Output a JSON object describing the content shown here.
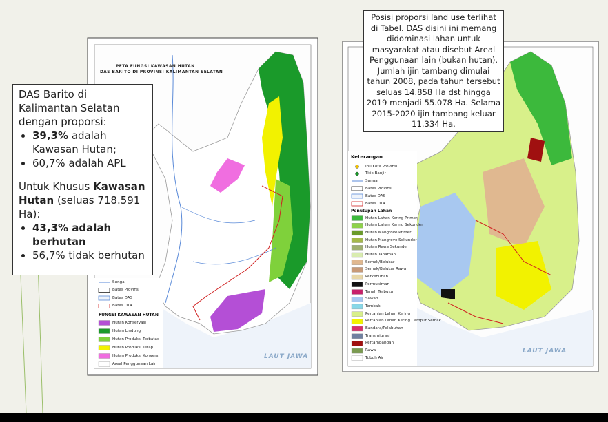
{
  "left_callout": {
    "intro": "DAS Barito di Kalimantan Selatan dengan proporsi:",
    "bullets": [
      {
        "bold": "39,3%",
        "text": "adalah Kawasan Hutan;"
      },
      {
        "text": "60,7% adalah APL"
      }
    ],
    "second_pre": "Untuk Khusus",
    "second_bold": "Kawasan Hutan",
    "second_post": "(seluas 718.591 Ha):",
    "bullets2": [
      {
        "bold": "43,3% adalah berhutan"
      },
      {
        "text": "56,7% tidak berhutan"
      }
    ]
  },
  "right_callout": {
    "paragraphs": [
      "Posisi proporsi land use terlihat di Tabel. DAS disini  ini memang didominasi lahan untuk masyarakat atau disebut Areal Penggunaan lain (bukan hutan).",
      "Jumlah ijin tambang dimulai tahun 2008, pada tahun tersebut seluas 14.858  Ha dst hingga 2019 menjadi 55.078 Ha. Selama 2015-2020 ijin tambang keluar 11.334 Ha."
    ]
  },
  "left_map": {
    "title": [
      "PETA FUNGSI KAWASAN HUTAN",
      "DAS BARITO DI PROVINSI KALIMANTAN SELATAN"
    ],
    "boundaries": [
      {
        "label": "Sungai",
        "style": "river"
      },
      {
        "label": "Batas Provinsi",
        "style": "prov"
      },
      {
        "label": "Batas DAS",
        "style": "das"
      },
      {
        "label": "Batas DTA",
        "style": "dta"
      }
    ],
    "legend_title": "FUNGSI KAWASAN HUTAN",
    "legend": [
      {
        "label": "Hutan Konservasi",
        "color": "#b44fd6"
      },
      {
        "label": "Hutan Lindung",
        "color": "#1a9a2a"
      },
      {
        "label": "Hutan Produksi Terbatas",
        "color": "#7fd13b"
      },
      {
        "label": "Hutan Produksi Tetap",
        "color": "#f2f200"
      },
      {
        "label": "Hutan Produksi Konversi",
        "color": "#f06ee0"
      },
      {
        "label": "Areal Penggunaan Lain",
        "color": "#ffffff"
      }
    ],
    "sea": "LAUT JAWA"
  },
  "right_map": {
    "legend_title": "Keterangan",
    "points": [
      {
        "label": "Ibu Kota Provinsi",
        "color": "#f2c200"
      },
      {
        "label": "Titik Banjir",
        "color": "#1a9a2a"
      }
    ],
    "boundaries": [
      {
        "label": "Sungai",
        "style": "river"
      },
      {
        "label": "Batas Provinsi",
        "style": "prov"
      },
      {
        "label": "Batas DAS",
        "style": "das"
      },
      {
        "label": "Batas DTA",
        "style": "dta"
      }
    ],
    "cover_title": "Penutupan Lahan",
    "legend": [
      {
        "label": "Hutan Lahan Kering Primer",
        "color": "#3cb93c"
      },
      {
        "label": "Hutan Lahan Kering Sekunder",
        "color": "#8ed24a"
      },
      {
        "label": "Hutan Mangrove Primer",
        "color": "#6a9a2a"
      },
      {
        "label": "Hutan Mangrove Sekunder",
        "color": "#a4b84a"
      },
      {
        "label": "Hutan Rawa Sekunder",
        "color": "#9fb070"
      },
      {
        "label": "Hutan Tanaman",
        "color": "#d9ecb0"
      },
      {
        "label": "Semak/Belukar",
        "color": "#e0b890"
      },
      {
        "label": "Semak/Belukar Rawa",
        "color": "#c89a78"
      },
      {
        "label": "Perkebunan",
        "color": "#e8d7a8"
      },
      {
        "label": "Permukiman",
        "color": "#111111"
      },
      {
        "label": "Tanah Terbuka",
        "color": "#c8206a"
      },
      {
        "label": "Sawah",
        "color": "#a8c8f0"
      },
      {
        "label": "Tambak",
        "color": "#88d8e8"
      },
      {
        "label": "Pertanian Lahan Kering",
        "color": "#d8f08a"
      },
      {
        "label": "Pertanian Lahan Kering Campur Semak",
        "color": "#f2f200"
      },
      {
        "label": "Bandara/Pelabuhan",
        "color": "#d8306a"
      },
      {
        "label": "Transmigrasi",
        "color": "#7080a0"
      },
      {
        "label": "Pertambangan",
        "color": "#a01010"
      },
      {
        "label": "Rawa",
        "color": "#7a9a50"
      },
      {
        "label": "Tubuh Air",
        "color": "#ffffff"
      }
    ],
    "sea": "LAUT JAWA"
  }
}
